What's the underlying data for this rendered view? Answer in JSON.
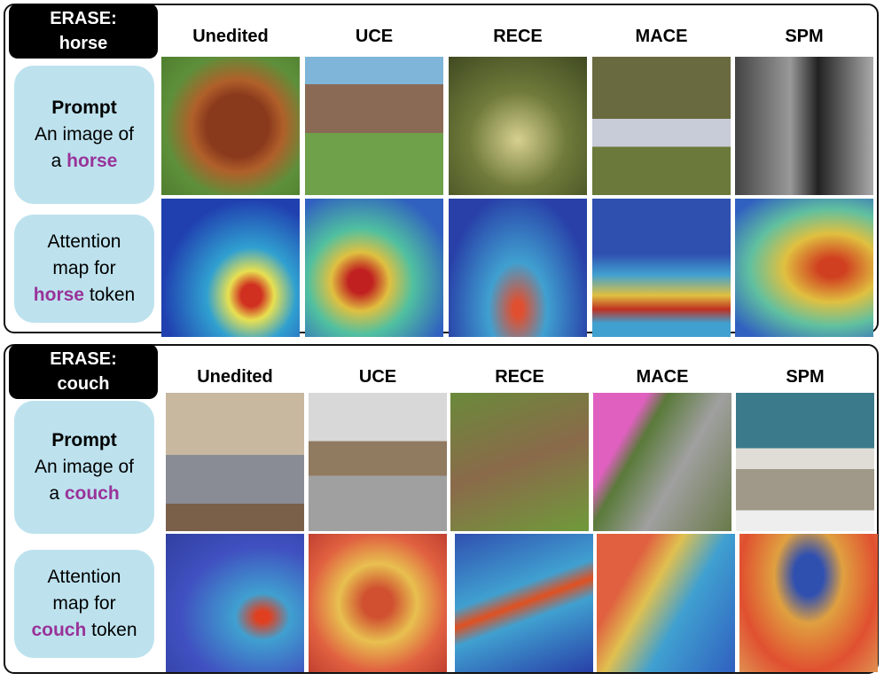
{
  "panels": [
    {
      "tag": [
        "ERASE:",
        "horse"
      ],
      "columns": [
        "Unedited",
        "UCE",
        "RECE",
        "MACE",
        "SPM"
      ],
      "prompt": {
        "title": "Prompt",
        "line1": "An image of",
        "prefix": "a",
        "keyword": "horse"
      },
      "attention": {
        "line1": "Attention",
        "line2": "map for",
        "keyword": "horse",
        "suffix": "token"
      }
    },
    {
      "tag": [
        "ERASE:",
        "couch"
      ],
      "columns": [
        "Unedited",
        "UCE",
        "RECE",
        "MACE",
        "SPM"
      ],
      "prompt": {
        "title": "Prompt",
        "line1": "An image of",
        "prefix": "a",
        "keyword": "couch"
      },
      "attention": {
        "line1": "Attention",
        "line2": "map for",
        "keyword": "couch",
        "suffix": "token"
      }
    }
  ]
}
